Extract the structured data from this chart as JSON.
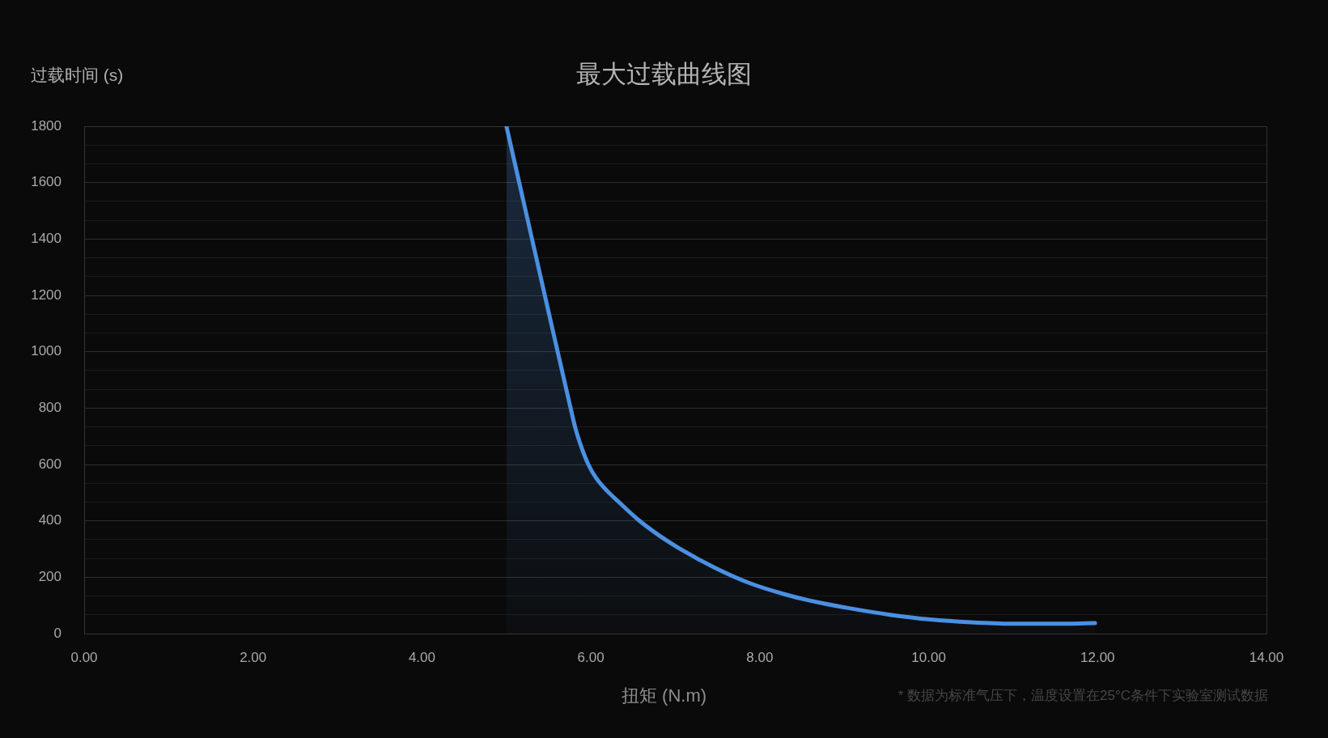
{
  "chart_data": {
    "type": "area",
    "title": "最大过载曲线图",
    "xlabel": "扭矩 (N.m)",
    "ylabel": "过载时间 (s)",
    "annotations": [
      "* 数据为标准气压下，温度设置在25°C条件下实验室测试数据"
    ],
    "x": [
      5.0,
      5.25,
      5.5,
      5.76,
      5.82,
      5.89,
      5.97,
      6.06,
      6.19,
      6.32,
      6.56,
      6.8,
      7.05,
      7.48,
      7.89,
      8.29,
      8.58,
      9.06,
      9.54,
      10.02,
      10.5,
      10.98,
      11.46,
      11.97
    ],
    "values": [
      1800,
      1470,
      1140,
      800,
      725,
      660,
      600,
      553,
      507,
      470,
      404,
      350,
      302,
      232,
      178,
      140,
      118,
      90,
      67,
      50,
      40,
      35,
      35,
      37
    ],
    "color": "#4a90e2",
    "xlim": [
      0,
      14
    ],
    "xticks": [
      {
        "value": 0,
        "label": "0.00"
      },
      {
        "value": 2,
        "label": "2.00"
      },
      {
        "value": 4,
        "label": "4.00"
      },
      {
        "value": 6,
        "label": "6.00"
      },
      {
        "value": 8,
        "label": "8.00"
      },
      {
        "value": 10,
        "label": "10.00"
      },
      {
        "value": 12,
        "label": "12.00"
      },
      {
        "value": 14,
        "label": "14.00"
      }
    ],
    "ylim": [
      0,
      1800
    ],
    "yticks": [
      0,
      {
        "value": 66.7,
        "label": null
      },
      {
        "value": 133.3,
        "label": null
      },
      200,
      {
        "value": 266.7,
        "label": null
      },
      {
        "value": 333.3,
        "label": null
      },
      400,
      {
        "value": 466.7,
        "label": null
      },
      {
        "value": 533.3,
        "label": null
      },
      600,
      {
        "value": 666.7,
        "label": null
      },
      {
        "value": 733.3,
        "label": null
      },
      800,
      {
        "value": 866.7,
        "label": null
      },
      {
        "value": 933.3,
        "label": null
      },
      1000,
      {
        "value": 1066.7,
        "label": null
      },
      {
        "value": 1133.3,
        "label": null
      },
      1200,
      {
        "value": 1266.7,
        "label": null
      },
      {
        "value": 1333.3,
        "label": null
      },
      1400,
      {
        "value": 1466.7,
        "label": null
      },
      {
        "value": 1533.3,
        "label": null
      },
      1600,
      {
        "value": 1666.7,
        "label": null
      },
      {
        "value": 1733.3,
        "label": null
      },
      1800
    ],
    "grid": "y",
    "legend": false,
    "marker": "none"
  }
}
